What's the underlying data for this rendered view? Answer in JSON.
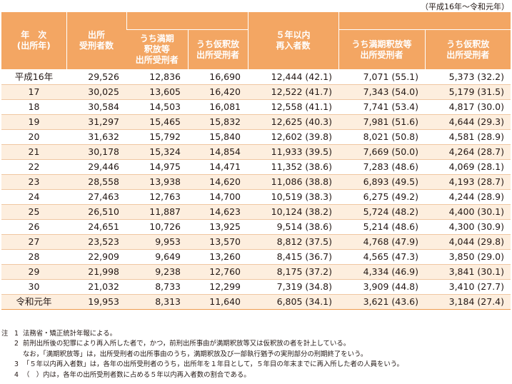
{
  "range_label": "（平成16年～令和元年）",
  "headers": {
    "year_line1": "年　次",
    "year_line2": "(出所年)",
    "released_line1": "出所",
    "released_line2": "受刑者数",
    "released_expiry_line1": "うち満期",
    "released_expiry_line2": "釈放等",
    "released_expiry_line3": "出所受刑者",
    "released_parole_line1": "うち仮釈放",
    "released_parole_line2": "出所受刑者",
    "reimprisoned_line1": "５年以内",
    "reimprisoned_line2": "再入者数",
    "reimprisoned_expiry_line1": "うち満期釈放等",
    "reimprisoned_expiry_line2": "出所受刑者",
    "reimprisoned_parole_line1": "うち仮釈放",
    "reimprisoned_parole_line2": "出所受刑者"
  },
  "rows": [
    {
      "year": "平成16年",
      "released": "29,526",
      "expiry": "12,836",
      "parole": "16,690",
      "re": "12,444",
      "re_pct": "(42.1)",
      "re_expiry": "7,071",
      "re_expiry_pct": "(55.1)",
      "re_parole": "5,373",
      "re_parole_pct": "(32.2)"
    },
    {
      "year": "17",
      "released": "30,025",
      "expiry": "13,605",
      "parole": "16,420",
      "re": "12,522",
      "re_pct": "(41.7)",
      "re_expiry": "7,343",
      "re_expiry_pct": "(54.0)",
      "re_parole": "5,179",
      "re_parole_pct": "(31.5)"
    },
    {
      "year": "18",
      "released": "30,584",
      "expiry": "14,503",
      "parole": "16,081",
      "re": "12,558",
      "re_pct": "(41.1)",
      "re_expiry": "7,741",
      "re_expiry_pct": "(53.4)",
      "re_parole": "4,817",
      "re_parole_pct": "(30.0)"
    },
    {
      "year": "19",
      "released": "31,297",
      "expiry": "15,465",
      "parole": "15,832",
      "re": "12,625",
      "re_pct": "(40.3)",
      "re_expiry": "7,981",
      "re_expiry_pct": "(51.6)",
      "re_parole": "4,644",
      "re_parole_pct": "(29.3)"
    },
    {
      "year": "20",
      "released": "31,632",
      "expiry": "15,792",
      "parole": "15,840",
      "re": "12,602",
      "re_pct": "(39.8)",
      "re_expiry": "8,021",
      "re_expiry_pct": "(50.8)",
      "re_parole": "4,581",
      "re_parole_pct": "(28.9)"
    },
    {
      "year": "21",
      "released": "30,178",
      "expiry": "15,324",
      "parole": "14,854",
      "re": "11,933",
      "re_pct": "(39.5)",
      "re_expiry": "7,669",
      "re_expiry_pct": "(50.0)",
      "re_parole": "4,264",
      "re_parole_pct": "(28.7)"
    },
    {
      "year": "22",
      "released": "29,446",
      "expiry": "14,975",
      "parole": "14,471",
      "re": "11,352",
      "re_pct": "(38.6)",
      "re_expiry": "7,283",
      "re_expiry_pct": "(48.6)",
      "re_parole": "4,069",
      "re_parole_pct": "(28.1)"
    },
    {
      "year": "23",
      "released": "28,558",
      "expiry": "13,938",
      "parole": "14,620",
      "re": "11,086",
      "re_pct": "(38.8)",
      "re_expiry": "6,893",
      "re_expiry_pct": "(49.5)",
      "re_parole": "4,193",
      "re_parole_pct": "(28.7)"
    },
    {
      "year": "24",
      "released": "27,463",
      "expiry": "12,763",
      "parole": "14,700",
      "re": "10,519",
      "re_pct": "(38.3)",
      "re_expiry": "6,275",
      "re_expiry_pct": "(49.2)",
      "re_parole": "4,244",
      "re_parole_pct": "(28.9)"
    },
    {
      "year": "25",
      "released": "26,510",
      "expiry": "11,887",
      "parole": "14,623",
      "re": "10,124",
      "re_pct": "(38.2)",
      "re_expiry": "5,724",
      "re_expiry_pct": "(48.2)",
      "re_parole": "4,400",
      "re_parole_pct": "(30.1)"
    },
    {
      "year": "26",
      "released": "24,651",
      "expiry": "10,726",
      "parole": "13,925",
      "re": "9,514",
      "re_pct": "(38.6)",
      "re_expiry": "5,214",
      "re_expiry_pct": "(48.6)",
      "re_parole": "4,300",
      "re_parole_pct": "(30.9)"
    },
    {
      "year": "27",
      "released": "23,523",
      "expiry": "9,953",
      "parole": "13,570",
      "re": "8,812",
      "re_pct": "(37.5)",
      "re_expiry": "4,768",
      "re_expiry_pct": "(47.9)",
      "re_parole": "4,044",
      "re_parole_pct": "(29.8)"
    },
    {
      "year": "28",
      "released": "22,909",
      "expiry": "9,649",
      "parole": "13,260",
      "re": "8,415",
      "re_pct": "(36.7)",
      "re_expiry": "4,565",
      "re_expiry_pct": "(47.3)",
      "re_parole": "3,850",
      "re_parole_pct": "(29.0)"
    },
    {
      "year": "29",
      "released": "21,998",
      "expiry": "9,238",
      "parole": "12,760",
      "re": "8,175",
      "re_pct": "(37.2)",
      "re_expiry": "4,334",
      "re_expiry_pct": "(46.9)",
      "re_parole": "3,841",
      "re_parole_pct": "(30.1)"
    },
    {
      "year": "30",
      "released": "21,032",
      "expiry": "8,733",
      "parole": "12,299",
      "re": "7,319",
      "re_pct": "(34.8)",
      "re_expiry": "3,909",
      "re_expiry_pct": "(44.8)",
      "re_parole": "3,410",
      "re_parole_pct": "(27.7)"
    },
    {
      "year": "令和元年",
      "released": "19,953",
      "expiry": "8,313",
      "parole": "11,640",
      "re": "6,805",
      "re_pct": "(34.1)",
      "re_expiry": "3,621",
      "re_expiry_pct": "(43.6)",
      "re_parole": "3,184",
      "re_parole_pct": "(27.4)"
    }
  ],
  "notes_label": "注",
  "notes": [
    {
      "num": "1",
      "text": "法務省・矯正統計年報による。"
    },
    {
      "num": "2",
      "text": "前刑出所後の犯罪により再入所した者で，かつ，前刑出所事由が満期釈放等又は仮釈放の者を計上している。"
    },
    {
      "num": "",
      "text": "なお，「満期釈放等」は，出所受刑者の出所事由のうち，満期釈放及び一部執行猶予の実刑部分の刑期終了をいう。"
    },
    {
      "num": "3",
      "text": "「５年以内再入者数」は，各年の出所受刑者のうち，出所年を１年目として，５年目の年末までに再入所した者の人員をいう。"
    },
    {
      "num": "4",
      "text": "（　）内は，各年の出所受刑者数に占める５年以内再入者数の割合である。"
    }
  ],
  "colors": {
    "header_bg": "#f3a663",
    "stripe_bg": "#fdeede",
    "rule": "#f0c7a2"
  }
}
